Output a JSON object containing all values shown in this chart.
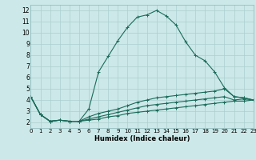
{
  "xlabel": "Humidex (Indice chaleur)",
  "bg_color": "#cce8e8",
  "grid_color": "#aacfcf",
  "line_color": "#1a6b5a",
  "xlim": [
    0,
    23
  ],
  "ylim": [
    1.5,
    12.5
  ],
  "xticks": [
    0,
    1,
    2,
    3,
    4,
    5,
    6,
    7,
    8,
    9,
    10,
    11,
    12,
    13,
    14,
    15,
    16,
    17,
    18,
    19,
    20,
    21,
    22,
    23
  ],
  "yticks": [
    2,
    3,
    4,
    5,
    6,
    7,
    8,
    9,
    10,
    11,
    12
  ],
  "series": [
    {
      "x": [
        0,
        1,
        2,
        3,
        4,
        5,
        6,
        7,
        8,
        9,
        10,
        11,
        12,
        13,
        14,
        15,
        16,
        17,
        18,
        19,
        20,
        21,
        22,
        23
      ],
      "y": [
        4.3,
        2.7,
        2.1,
        2.2,
        2.1,
        2.1,
        3.2,
        6.5,
        7.9,
        9.3,
        10.5,
        11.4,
        11.6,
        12.0,
        11.5,
        10.7,
        9.2,
        8.0,
        7.5,
        6.5,
        5.1,
        4.3,
        4.2,
        4.0
      ]
    },
    {
      "x": [
        0,
        1,
        2,
        3,
        4,
        5,
        6,
        7,
        8,
        9,
        10,
        11,
        12,
        13,
        14,
        15,
        16,
        17,
        18,
        19,
        20,
        21,
        22,
        23
      ],
      "y": [
        4.3,
        2.7,
        2.1,
        2.2,
        2.1,
        2.1,
        2.5,
        2.8,
        3.0,
        3.2,
        3.5,
        3.8,
        4.0,
        4.2,
        4.3,
        4.4,
        4.5,
        4.6,
        4.7,
        4.8,
        5.0,
        4.3,
        4.2,
        4.0
      ]
    },
    {
      "x": [
        0,
        1,
        2,
        3,
        4,
        5,
        6,
        7,
        8,
        9,
        10,
        11,
        12,
        13,
        14,
        15,
        16,
        17,
        18,
        19,
        20,
        21,
        22,
        23
      ],
      "y": [
        4.3,
        2.7,
        2.1,
        2.2,
        2.1,
        2.1,
        2.3,
        2.5,
        2.7,
        2.9,
        3.1,
        3.3,
        3.5,
        3.6,
        3.7,
        3.8,
        3.9,
        4.0,
        4.1,
        4.2,
        4.3,
        4.0,
        4.1,
        4.0
      ]
    },
    {
      "x": [
        0,
        1,
        2,
        3,
        4,
        5,
        6,
        7,
        8,
        9,
        10,
        11,
        12,
        13,
        14,
        15,
        16,
        17,
        18,
        19,
        20,
        21,
        22,
        23
      ],
      "y": [
        4.3,
        2.7,
        2.1,
        2.2,
        2.1,
        2.1,
        2.2,
        2.3,
        2.5,
        2.6,
        2.8,
        2.9,
        3.0,
        3.1,
        3.2,
        3.3,
        3.4,
        3.5,
        3.6,
        3.7,
        3.8,
        3.9,
        3.9,
        4.0
      ]
    }
  ]
}
